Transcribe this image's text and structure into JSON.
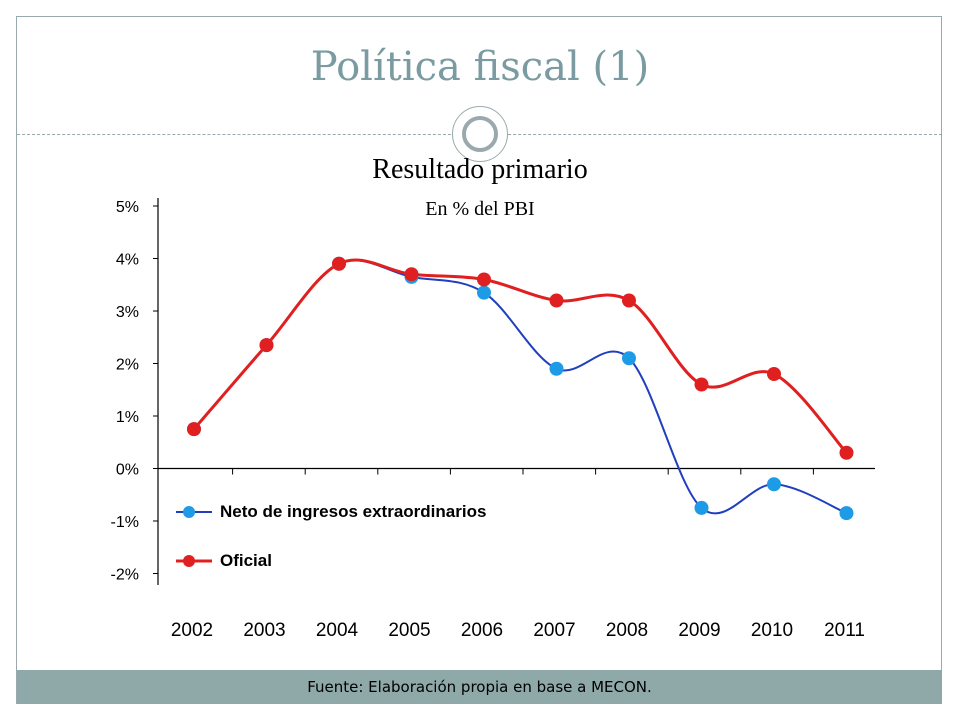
{
  "slide": {
    "title": "Política fiscal (1)",
    "footer": "Fuente: Elaboración propia en base a MECON."
  },
  "chart_data": {
    "type": "line",
    "title": "Resultado primario",
    "subtitle": "En % del PBI",
    "categories": [
      "2002",
      "2003",
      "2004",
      "2005",
      "2006",
      "2007",
      "2008",
      "2009",
      "2010",
      "2011"
    ],
    "y_ticks": [
      "5%",
      "4%",
      "3%",
      "2%",
      "1%",
      "0%",
      "-1%",
      "-2%"
    ],
    "ylim": [
      -2,
      5
    ],
    "series": [
      {
        "name": "Neto de ingresos extraordinarios",
        "color": "#1f3fbf",
        "marker_color": "#1e9be6",
        "values": [
          0.75,
          2.35,
          3.9,
          3.65,
          3.35,
          1.9,
          2.1,
          -0.75,
          -0.3,
          -0.85
        ]
      },
      {
        "name": "Oficial",
        "color": "#e02020",
        "marker_color": "#e02020",
        "values": [
          0.75,
          2.35,
          3.9,
          3.7,
          3.6,
          3.2,
          3.2,
          1.6,
          1.8,
          0.3
        ]
      }
    ],
    "legend_position": "bottom-left",
    "grid": false
  }
}
